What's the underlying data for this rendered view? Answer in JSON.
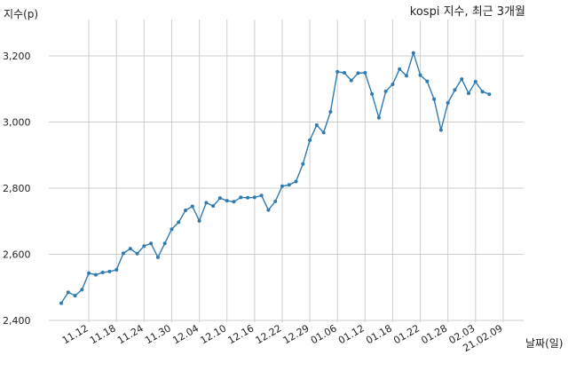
{
  "chart_data": {
    "type": "line",
    "title": "kospi 지수, 최근 3개월",
    "ylabel": "지수(p)",
    "xlabel": "날짜(일)",
    "ylim": [
      2400,
      3260
    ],
    "yticks": [
      2400,
      2600,
      2800,
      3000,
      3200
    ],
    "ytick_labels": [
      "2,400",
      "2,600",
      "2,800",
      "3,000",
      "3,200"
    ],
    "grid": true,
    "line_color": "#2f7bb0",
    "xtick_labels": [
      "11.12",
      "11.18",
      "11.24",
      "11.30",
      "12.04",
      "12.10",
      "12.16",
      "12.22",
      "12.29",
      "01.06",
      "01.12",
      "01.18",
      "01.22",
      "01.28",
      "02.03",
      "21.02.09"
    ],
    "xtick_index": [
      4,
      8,
      12,
      16,
      20,
      24,
      28,
      32,
      36,
      40,
      44,
      48,
      52,
      56,
      60,
      64
    ],
    "values": [
      2452,
      2485,
      2475,
      2493,
      2543,
      2538,
      2545,
      2548,
      2553,
      2603,
      2617,
      2602,
      2625,
      2633,
      2591,
      2633,
      2676,
      2697,
      2733,
      2745,
      2701,
      2756,
      2746,
      2770,
      2762,
      2759,
      2772,
      2771,
      2772,
      2778,
      2734,
      2760,
      2806,
      2810,
      2820,
      2873,
      2945,
      2991,
      2968,
      3031,
      3152,
      3149,
      3126,
      3148,
      3149,
      3085,
      3013,
      3093,
      3114,
      3160,
      3140,
      3209,
      3142,
      3123,
      3069,
      2976,
      3058,
      3097,
      3130,
      3087,
      3122,
      3092,
      3084
    ]
  }
}
